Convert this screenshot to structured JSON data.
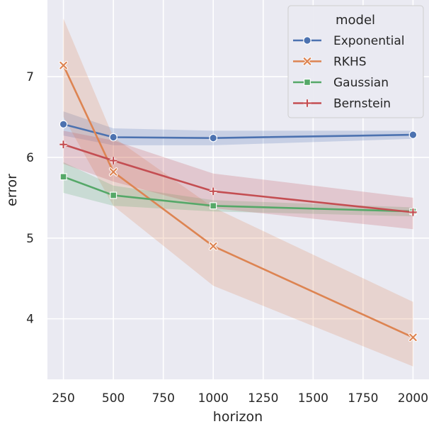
{
  "chart_data": {
    "type": "line",
    "xlabel": "horizon",
    "ylabel": "error",
    "xlim": [
      170,
      2080
    ],
    "ylim": [
      3.25,
      7.95
    ],
    "x_ticks": [
      250,
      500,
      750,
      1000,
      1250,
      1500,
      1750,
      2000
    ],
    "y_ticks": [
      4,
      5,
      6,
      7
    ],
    "grid": true,
    "legend": {
      "title": "model",
      "placement": "top-right"
    },
    "x": [
      250,
      500,
      1000,
      2000
    ],
    "series": [
      {
        "name": "Exponential",
        "color": "#4c72b0",
        "marker": "circle",
        "values": [
          6.41,
          6.25,
          6.24,
          6.28
        ],
        "ci_low": [
          6.27,
          6.15,
          6.15,
          6.23
        ],
        "ci_high": [
          6.57,
          6.36,
          6.33,
          6.33
        ]
      },
      {
        "name": "RKHS",
        "color": "#dd8452",
        "marker": "x",
        "values": [
          7.14,
          5.82,
          4.9,
          3.77
        ],
        "ci_low": [
          6.5,
          5.4,
          4.41,
          3.41
        ],
        "ci_high": [
          7.72,
          6.25,
          5.38,
          4.21
        ]
      },
      {
        "name": "Gaussian",
        "color": "#55a868",
        "marker": "square",
        "values": [
          5.76,
          5.53,
          5.4,
          5.33
        ],
        "ci_low": [
          5.56,
          5.4,
          5.33,
          5.27
        ],
        "ci_high": [
          5.94,
          5.65,
          5.47,
          5.38
        ]
      },
      {
        "name": "Bernstein",
        "color": "#c44e52",
        "marker": "plus",
        "values": [
          6.16,
          5.96,
          5.58,
          5.32
        ],
        "ci_low": [
          5.92,
          5.7,
          5.37,
          5.11
        ],
        "ci_high": [
          6.33,
          6.21,
          5.8,
          5.5
        ]
      }
    ]
  }
}
